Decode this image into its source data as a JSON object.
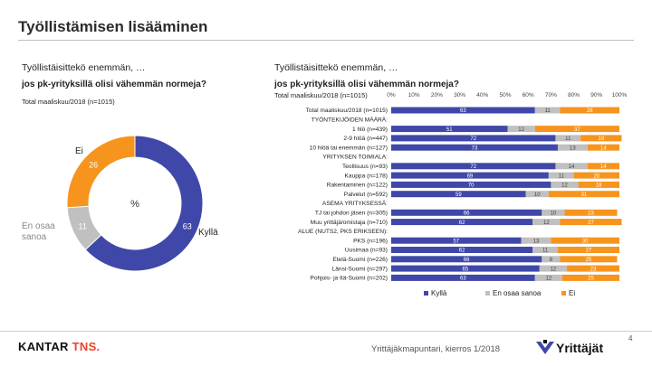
{
  "page": {
    "title": "Työllistämisen lisääminen",
    "footer_center": "Yrittäjäkmapuntari, kierros 1/2018",
    "page_number": "4",
    "kantar_logo": {
      "name": "KANTAR",
      "accent": "TNS",
      "mark": "."
    },
    "yrittajat_logo": "Yrittäjät"
  },
  "left_panel": {
    "question_line1": "Työllistäisittekö enemmän, …",
    "question_line2": "jos pk-yrityksillä olisi vähemmän normeja?",
    "subtitle": "Total maaliskuu/2018  (n=1015)"
  },
  "right_panel": {
    "question_line1": "Työllistäisittekö enemmän, …",
    "question_line2": "jos pk-yrityksillä olisi vähemmän normeja?",
    "subtitle": "Total maaliskuu/2018  (n=1015)"
  },
  "colors": {
    "kylla": "#3f48a8",
    "en_osaa": "#c0c0c0",
    "ei": "#f7941d"
  },
  "chart_data": [
    {
      "type": "pie",
      "donut": true,
      "center_label": "%",
      "slices": [
        {
          "label": "Kyllä",
          "value": 63,
          "color": "#3f48a8"
        },
        {
          "label": "En osaa sanoa",
          "value": 11,
          "color": "#c0c0c0"
        },
        {
          "label": "Ei",
          "value": 26,
          "color": "#f7941d"
        }
      ]
    },
    {
      "type": "bar",
      "orientation": "horizontal",
      "stacked": true,
      "xlim": [
        0,
        100
      ],
      "ticks": [
        "0%",
        "10%",
        "20%",
        "30%",
        "40%",
        "50%",
        "60%",
        "70%",
        "80%",
        "90%",
        "100%"
      ],
      "legend_position": "bottom",
      "series": [
        {
          "name": "Kyllä",
          "color": "#3f48a8"
        },
        {
          "name": "En osaa sanoa",
          "color": "#c0c0c0"
        },
        {
          "name": "Ei",
          "color": "#f7941d"
        }
      ],
      "rows": [
        {
          "label": "Total maaliskuu/2018 (n=1015)",
          "values": [
            63,
            11,
            26
          ]
        },
        {
          "label": "TYÖNTEKIJÖIDEN MÄÄRÄ:",
          "values": null
        },
        {
          "label": "1 hlö (n=439)",
          "values": [
            51,
            12,
            37
          ]
        },
        {
          "label": "2-9 hlöä (n=447)",
          "values": [
            72,
            11,
            18
          ]
        },
        {
          "label": "10 hlöä tai enemmän (n=127)",
          "values": [
            73,
            13,
            14
          ]
        },
        {
          "label": "YRITYKSEN TOIMIALA:",
          "values": null
        },
        {
          "label": "Teollisuus (n=93)",
          "values": [
            72,
            14,
            14
          ]
        },
        {
          "label": "Kauppa (n=178)",
          "values": [
            69,
            11,
            20
          ]
        },
        {
          "label": "Rakentaminen (n=122)",
          "values": [
            70,
            12,
            18
          ]
        },
        {
          "label": "Palvelut (n=592)",
          "values": [
            59,
            10,
            31
          ]
        },
        {
          "label": "ASEMA YRITYKSESSÄ:",
          "values": null
        },
        {
          "label": "TJ tai johdon jäsen (n=305)",
          "values": [
            66,
            10,
            23
          ]
        },
        {
          "label": "Muu yrittäjä/omistaja (n=710)",
          "values": [
            62,
            12,
            27
          ]
        },
        {
          "label": "ALUE (NUTS2, PKS ERIKSEEN):",
          "values": null
        },
        {
          "label": "PKS (n=196)",
          "values": [
            57,
            13,
            30
          ]
        },
        {
          "label": "Uusimaa (n=93)",
          "values": [
            62,
            11,
            27
          ]
        },
        {
          "label": "Etelä-Suomi (n=226)",
          "values": [
            66,
            8,
            25
          ]
        },
        {
          "label": "Länsi-Suomi (n=297)",
          "values": [
            65,
            12,
            23
          ]
        },
        {
          "label": "Pohjois- ja Itä-Suomi (n=202)",
          "values": [
            63,
            12,
            25
          ]
        }
      ]
    }
  ]
}
